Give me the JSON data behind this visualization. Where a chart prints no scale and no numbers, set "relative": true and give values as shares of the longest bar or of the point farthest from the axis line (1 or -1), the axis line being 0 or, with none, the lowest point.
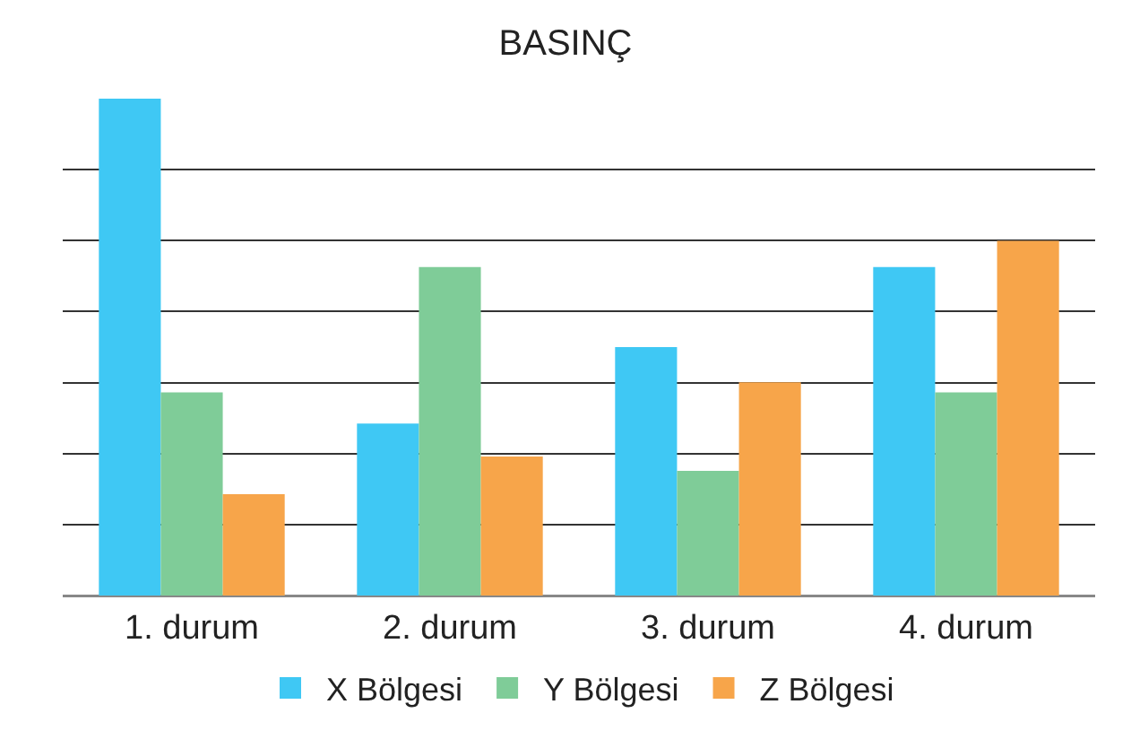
{
  "chart_data": {
    "type": "bar",
    "title": "BASINÇ",
    "relative": true,
    "grid": "y",
    "legend": "bottom",
    "categories": [
      "1. durum",
      "2. durum",
      "3. durum",
      "4. durum"
    ],
    "series": [
      {
        "name": "X Bölgesi",
        "color": "#3fc8f4",
        "values": [
          1,
          0.346,
          0.5,
          0.661
        ]
      },
      {
        "name": "Y Bölgesi",
        "color": "#7fcc98",
        "values": [
          0.409,
          0.661,
          0.251,
          0.409
        ]
      },
      {
        "name": "Z Bölgesi",
        "color": "#f7a54a",
        "values": [
          0.204,
          0.28,
          0.429,
          0.714
        ]
      }
    ]
  }
}
